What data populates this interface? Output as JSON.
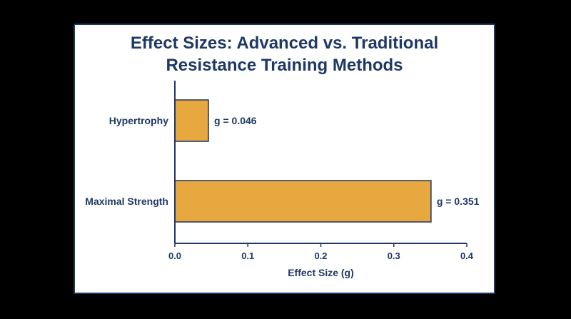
{
  "chart_data": {
    "type": "bar",
    "orientation": "horizontal",
    "title_lines": [
      "Effect Sizes: Advanced vs. Traditional",
      "Resistance Training Methods"
    ],
    "categories": [
      "Hypertrophy",
      "Maximal Strength"
    ],
    "values": [
      0.046,
      0.351
    ],
    "data_labels": [
      "g = 0.046",
      "g = 0.351"
    ],
    "xlabel": "Effect Size (g)",
    "ylabel": "",
    "xlim": [
      0,
      0.4
    ],
    "xticks": [
      "0.0",
      "0.1",
      "0.2",
      "0.3",
      "0.4"
    ],
    "grid": false,
    "bar_color": "#e6a83f",
    "bar_edge_color": "#1f3864",
    "text_color": "#1f3864"
  }
}
